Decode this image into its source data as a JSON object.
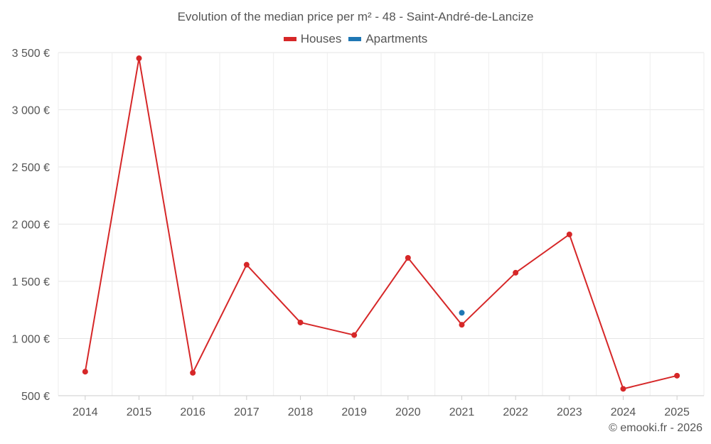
{
  "chart_data": {
    "type": "line",
    "title": "Evolution of the median price per m² - 48 - Saint-André-de-Lancize",
    "categories": [
      "2014",
      "2015",
      "2016",
      "2017",
      "2018",
      "2019",
      "2020",
      "2021",
      "2022",
      "2023",
      "2024",
      "2025"
    ],
    "series": [
      {
        "name": "Houses",
        "color": "#d62728",
        "values": [
          710,
          3450,
          700,
          1645,
          1140,
          1030,
          1705,
          1120,
          1575,
          1910,
          560,
          675
        ]
      },
      {
        "name": "Apartments",
        "color": "#1f77b4",
        "values": [
          null,
          null,
          null,
          null,
          null,
          null,
          null,
          1225,
          null,
          null,
          null,
          null
        ]
      }
    ],
    "ylim": [
      500,
      3500
    ],
    "yticks": [
      500,
      1000,
      1500,
      2000,
      2500,
      3000,
      3500
    ],
    "ytick_labels": [
      "500 €",
      "1 000 €",
      "1 500 €",
      "2 000 €",
      "2 500 €",
      "3 000 €",
      "3 500 €"
    ],
    "grid": true,
    "legend_position": "top-center"
  },
  "credit": "© emooki.fr - 2026"
}
